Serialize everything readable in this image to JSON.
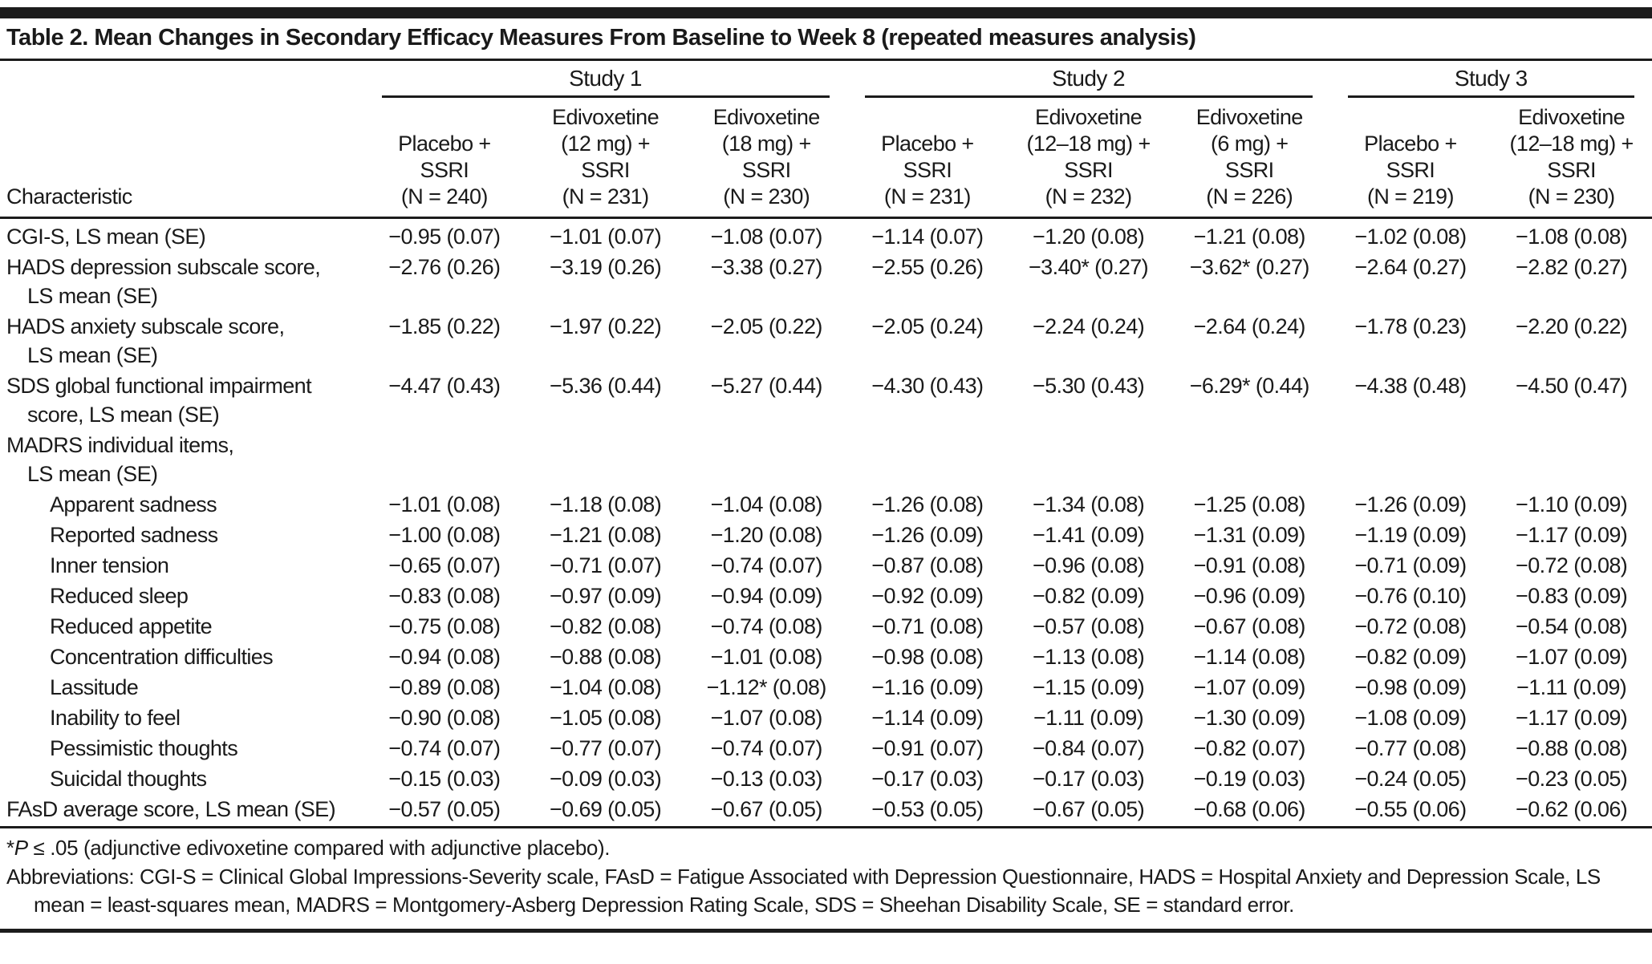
{
  "title": "Table 2. Mean Changes in Secondary Efficacy Measures From Baseline to Week 8 (repeated measures analysis)",
  "table": {
    "corner_label": "Characteristic",
    "groups": [
      {
        "label": "Study 1"
      },
      {
        "label": "Study 2"
      },
      {
        "label": "Study 3"
      }
    ],
    "columns": [
      "Placebo +\nSSRI\n(N = 240)",
      "Edivoxetine\n(12 mg) +\nSSRI\n(N = 231)",
      "Edivoxetine\n(18 mg) +\nSSRI\n(N = 230)",
      "Placebo +\nSSRI\n(N = 231)",
      "Edivoxetine\n(12–18 mg) +\nSSRI\n(N = 232)",
      "Edivoxetine\n(6 mg) +\nSSRI\n(N = 226)",
      "Placebo +\nSSRI\n(N = 219)",
      "Edivoxetine\n(12–18 mg) +\nSSRI\n(N = 230)"
    ],
    "rows": [
      {
        "label": "CGI-S, LS mean (SE)",
        "label2": null,
        "indent": 0,
        "values": [
          "−0.95 (0.07)",
          "−1.01 (0.07)",
          "−1.08 (0.07)",
          "−1.14 (0.07)",
          "−1.20 (0.08)",
          "−1.21 (0.08)",
          "−1.02 (0.08)",
          "−1.08 (0.08)"
        ]
      },
      {
        "label": "HADS depression subscale score,",
        "label2": "LS mean (SE)",
        "indent": 0,
        "values": [
          "−2.76 (0.26)",
          "−3.19 (0.26)",
          "−3.38 (0.27)",
          "−2.55 (0.26)",
          "−3.40* (0.27)",
          "−3.62* (0.27)",
          "−2.64 (0.27)",
          "−2.82 (0.27)"
        ]
      },
      {
        "label": "HADS anxiety subscale score,",
        "label2": "LS mean (SE)",
        "indent": 0,
        "values": [
          "−1.85 (0.22)",
          "−1.97 (0.22)",
          "−2.05 (0.22)",
          "−2.05 (0.24)",
          "−2.24 (0.24)",
          "−2.64 (0.24)",
          "−1.78 (0.23)",
          "−2.20 (0.22)"
        ]
      },
      {
        "label": "SDS global functional impairment",
        "label2": "score, LS mean (SE)",
        "indent": 0,
        "values": [
          "−4.47 (0.43)",
          "−5.36 (0.44)",
          "−5.27 (0.44)",
          "−4.30 (0.43)",
          "−5.30 (0.43)",
          "−6.29* (0.44)",
          "−4.38 (0.48)",
          "−4.50 (0.47)"
        ]
      },
      {
        "label": "MADRS individual items,",
        "label2": "LS mean (SE)",
        "indent": 0,
        "values": [
          "",
          "",
          "",
          "",
          "",
          "",
          "",
          ""
        ]
      },
      {
        "label": "Apparent sadness",
        "label2": null,
        "indent": 2,
        "values": [
          "−1.01 (0.08)",
          "−1.18 (0.08)",
          "−1.04 (0.08)",
          "−1.26 (0.08)",
          "−1.34 (0.08)",
          "−1.25 (0.08)",
          "−1.26 (0.09)",
          "−1.10 (0.09)"
        ]
      },
      {
        "label": "Reported sadness",
        "label2": null,
        "indent": 2,
        "values": [
          "−1.00 (0.08)",
          "−1.21 (0.08)",
          "−1.20 (0.08)",
          "−1.26 (0.09)",
          "−1.41 (0.09)",
          "−1.31 (0.09)",
          "−1.19 (0.09)",
          "−1.17 (0.09)"
        ]
      },
      {
        "label": "Inner tension",
        "label2": null,
        "indent": 2,
        "values": [
          "−0.65 (0.07)",
          "−0.71 (0.07)",
          "−0.74 (0.07)",
          "−0.87 (0.08)",
          "−0.96 (0.08)",
          "−0.91 (0.08)",
          "−0.71 (0.09)",
          "−0.72 (0.08)"
        ]
      },
      {
        "label": "Reduced sleep",
        "label2": null,
        "indent": 2,
        "values": [
          "−0.83 (0.08)",
          "−0.97 (0.09)",
          "−0.94 (0.09)",
          "−0.92 (0.09)",
          "−0.82 (0.09)",
          "−0.96 (0.09)",
          "−0.76 (0.10)",
          "−0.83 (0.09)"
        ]
      },
      {
        "label": "Reduced appetite",
        "label2": null,
        "indent": 2,
        "values": [
          "−0.75 (0.08)",
          "−0.82 (0.08)",
          "−0.74 (0.08)",
          "−0.71 (0.08)",
          "−0.57 (0.08)",
          "−0.67 (0.08)",
          "−0.72 (0.08)",
          "−0.54 (0.08)"
        ]
      },
      {
        "label": "Concentration difficulties",
        "label2": null,
        "indent": 2,
        "values": [
          "−0.94 (0.08)",
          "−0.88 (0.08)",
          "−1.01 (0.08)",
          "−0.98 (0.08)",
          "−1.13 (0.08)",
          "−1.14 (0.08)",
          "−0.82 (0.09)",
          "−1.07 (0.09)"
        ]
      },
      {
        "label": "Lassitude",
        "label2": null,
        "indent": 2,
        "values": [
          "−0.89 (0.08)",
          "−1.04 (0.08)",
          "−1.12* (0.08)",
          "−1.16 (0.09)",
          "−1.15 (0.09)",
          "−1.07 (0.09)",
          "−0.98 (0.09)",
          "−1.11 (0.09)"
        ]
      },
      {
        "label": "Inability to feel",
        "label2": null,
        "indent": 2,
        "values": [
          "−0.90 (0.08)",
          "−1.05 (0.08)",
          "−1.07 (0.08)",
          "−1.14 (0.09)",
          "−1.11 (0.09)",
          "−1.30 (0.09)",
          "−1.08 (0.09)",
          "−1.17 (0.09)"
        ]
      },
      {
        "label": "Pessimistic thoughts",
        "label2": null,
        "indent": 2,
        "values": [
          "−0.74 (0.07)",
          "−0.77 (0.07)",
          "−0.74 (0.07)",
          "−0.91 (0.07)",
          "−0.84 (0.07)",
          "−0.82 (0.07)",
          "−0.77 (0.08)",
          "−0.88 (0.08)"
        ]
      },
      {
        "label": "Suicidal thoughts",
        "label2": null,
        "indent": 2,
        "values": [
          "−0.15 (0.03)",
          "−0.09 (0.03)",
          "−0.13 (0.03)",
          "−0.17 (0.03)",
          "−0.17 (0.03)",
          "−0.19 (0.03)",
          "−0.24 (0.05)",
          "−0.23 (0.05)"
        ]
      },
      {
        "label": "FAsD average score, LS mean (SE)",
        "label2": null,
        "indent": 0,
        "values": [
          "−0.57 (0.05)",
          "−0.69 (0.05)",
          "−0.67 (0.05)",
          "−0.53 (0.05)",
          "−0.67 (0.05)",
          "−0.68 (0.06)",
          "−0.55 (0.06)",
          "−0.62 (0.06)"
        ]
      }
    ]
  },
  "footnotes": {
    "significance_star": "*",
    "significance_p": "P",
    "significance_rest": " ≤ .05 (adjunctive edivoxetine compared with adjunctive placebo).",
    "abbreviations": "Abbreviations: CGI-S = Clinical Global Impressions-Severity scale, FAsD = Fatigue Associated with Depression Questionnaire, HADS = Hospital Anxiety and Depression Scale, LS mean = least-squares mean, MADRS = Montgomery-Asberg Depression Rating Scale, SDS = Sheehan Disability Scale, SE = standard error."
  },
  "colors": {
    "text": "#1a1a1a",
    "rule": "#1c1c1c",
    "background": "#ffffff"
  }
}
